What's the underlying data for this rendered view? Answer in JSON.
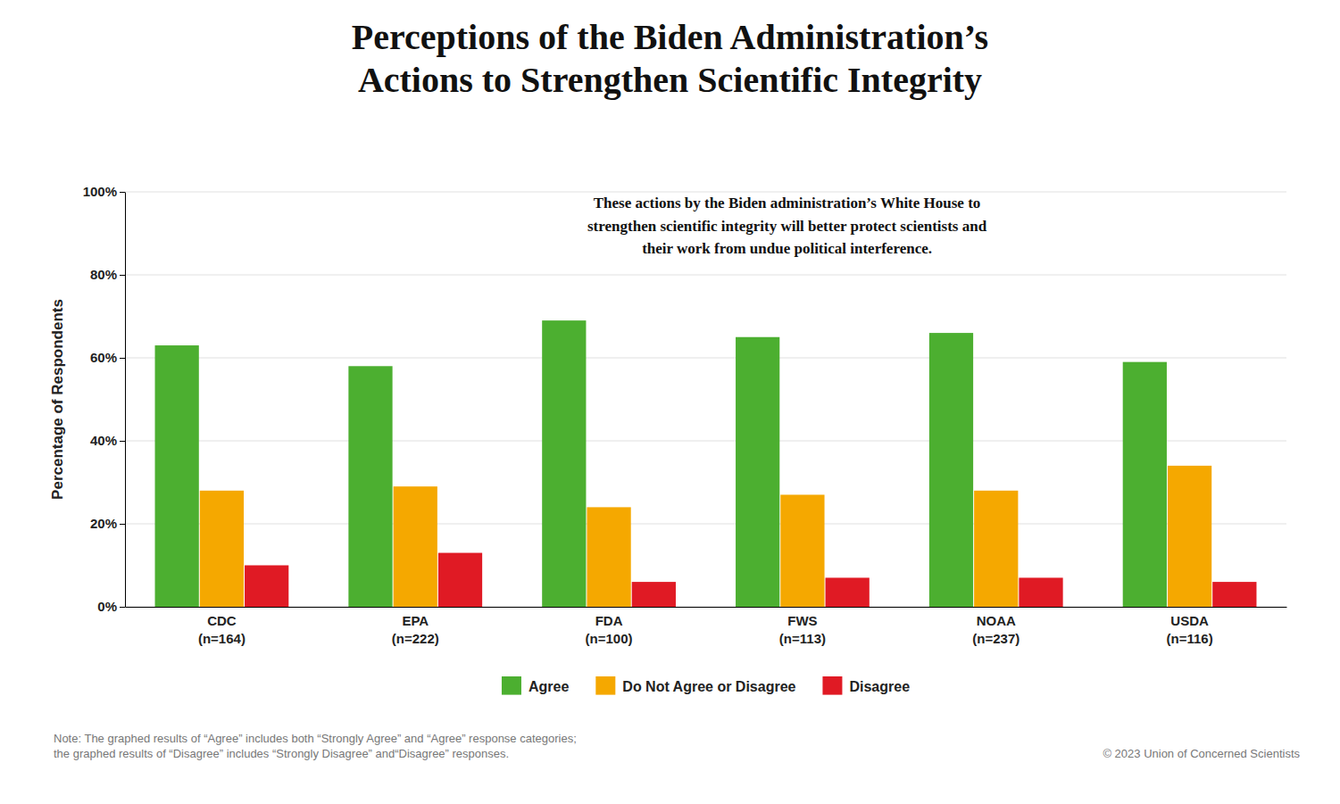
{
  "chart_data": {
    "type": "bar",
    "title": "Perceptions of the Biden Administration’s\nActions to Strengthen Scientific Integrity",
    "categories": [
      "CDC\n(n=164)",
      "EPA\n(n=222)",
      "FDA\n(n=100)",
      "FWS\n(n=113)",
      "NOAA\n(n=237)",
      "USDA\n(n=116)"
    ],
    "series": [
      {
        "name": "Agree",
        "color": "#4caf30",
        "values": [
          63,
          58,
          69,
          65,
          66,
          59
        ]
      },
      {
        "name": "Do Not Agree or Disagree",
        "color": "#f5a800",
        "values": [
          28,
          29,
          24,
          27,
          28,
          34
        ]
      },
      {
        "name": "Disagree",
        "color": "#e01a24",
        "values": [
          10,
          13,
          6,
          7,
          7,
          6
        ]
      }
    ],
    "ylabel": "Percentage of Respondents",
    "ylim": [
      0,
      100
    ],
    "yticks": [
      {
        "value": 0,
        "label": "0%"
      },
      {
        "value": 20,
        "label": "20%"
      },
      {
        "value": 40,
        "label": "40%"
      },
      {
        "value": 60,
        "label": "60%"
      },
      {
        "value": 80,
        "label": "80%"
      },
      {
        "value": 100,
        "label": "100%"
      }
    ],
    "grid": true,
    "legend": "bottom",
    "annotations": [
      "These actions by the Biden administration’s White House to\nstrengthen scientific integrity will better protect scientists and\ntheir work from undue political interference.",
      "Note: The graphed results of “Agree” includes both “Strongly Agree” and “Agree” response categories;\nthe graphed results of “Disagree” includes “Strongly Disagree” and“Disagree” responses.",
      "© 2023 Union of Concerned Scientists"
    ]
  }
}
